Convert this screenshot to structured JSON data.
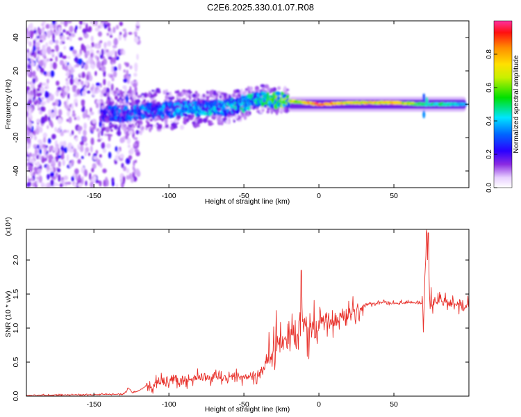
{
  "page": {
    "title": "C2E6.2025.330.01.07.R08"
  },
  "chart_data": [
    {
      "id": "spectrogram",
      "type": "heatmap",
      "xlabel": "Height of straight line (km)",
      "ylabel": "Frequency (Hz)",
      "xlim": [
        -195,
        100
      ],
      "ylim": [
        -50,
        50
      ],
      "xticks": [
        -150,
        -100,
        -50,
        0,
        50
      ],
      "yticks": [
        -40,
        -20,
        0,
        20,
        40
      ],
      "colorbar": {
        "label": "Normalized spectral amplitude",
        "range": [
          0.0,
          1.0
        ],
        "ticks": [
          0.0,
          0.2,
          0.4,
          0.6,
          0.8
        ],
        "tick_labels": [
          "0.0",
          "0.2",
          "0.4",
          "0.6",
          "0.8"
        ]
      },
      "ridge": [
        {
          "x": -195,
          "f": -5,
          "amp": 0.05
        },
        {
          "x": -150,
          "f": -5,
          "amp": 0.15
        },
        {
          "x": -135,
          "f": -6,
          "amp": 0.3
        },
        {
          "x": -100,
          "f": -3,
          "amp": 0.35
        },
        {
          "x": -60,
          "f": -2,
          "amp": 0.4
        },
        {
          "x": -40,
          "f": 3,
          "amp": 0.45
        },
        {
          "x": -20,
          "f": 2,
          "amp": 0.6
        },
        {
          "x": 0,
          "f": 0,
          "amp": 0.9
        },
        {
          "x": 20,
          "f": 1,
          "amp": 0.7
        },
        {
          "x": 50,
          "f": 1,
          "amp": 0.75
        },
        {
          "x": 70,
          "f": 0,
          "amp": 0.5
        },
        {
          "x": 100,
          "f": 0,
          "amp": 0.4
        }
      ]
    },
    {
      "id": "snr",
      "type": "line",
      "xlabel": "Height of straight line (km)",
      "ylabel": "SNR (10 * v/v)",
      "scale_label": "(x10⁴)",
      "xlim": [
        -195,
        100
      ],
      "ylim": [
        0,
        2.45
      ],
      "xticks": [
        -150,
        -100,
        -50,
        0,
        50
      ],
      "yticks": [
        0.0,
        0.5,
        1.0,
        1.5,
        2.0
      ],
      "ytick_labels": [
        "0.0",
        "0.5",
        "1.0",
        "1.5",
        "2.0"
      ],
      "color": "#e8302a",
      "series": [
        {
          "name": "SNR",
          "x": [
            -195,
            -160,
            -130,
            -127,
            -124,
            -120,
            -115,
            -100,
            -80,
            -60,
            -40,
            -32,
            -28,
            -20,
            -12,
            -10,
            -5,
            0,
            10,
            25,
            30,
            40,
            60,
            70,
            72,
            74,
            80,
            90,
            100
          ],
          "y": [
            0.01,
            0.02,
            0.03,
            0.12,
            0.05,
            0.08,
            0.15,
            0.22,
            0.25,
            0.28,
            0.3,
            0.6,
            0.8,
            0.85,
            0.9,
            1.05,
            0.95,
            1.05,
            1.1,
            1.25,
            1.33,
            1.37,
            1.37,
            1.38,
            2.4,
            1.35,
            1.4,
            1.35,
            1.32
          ]
        }
      ]
    }
  ]
}
